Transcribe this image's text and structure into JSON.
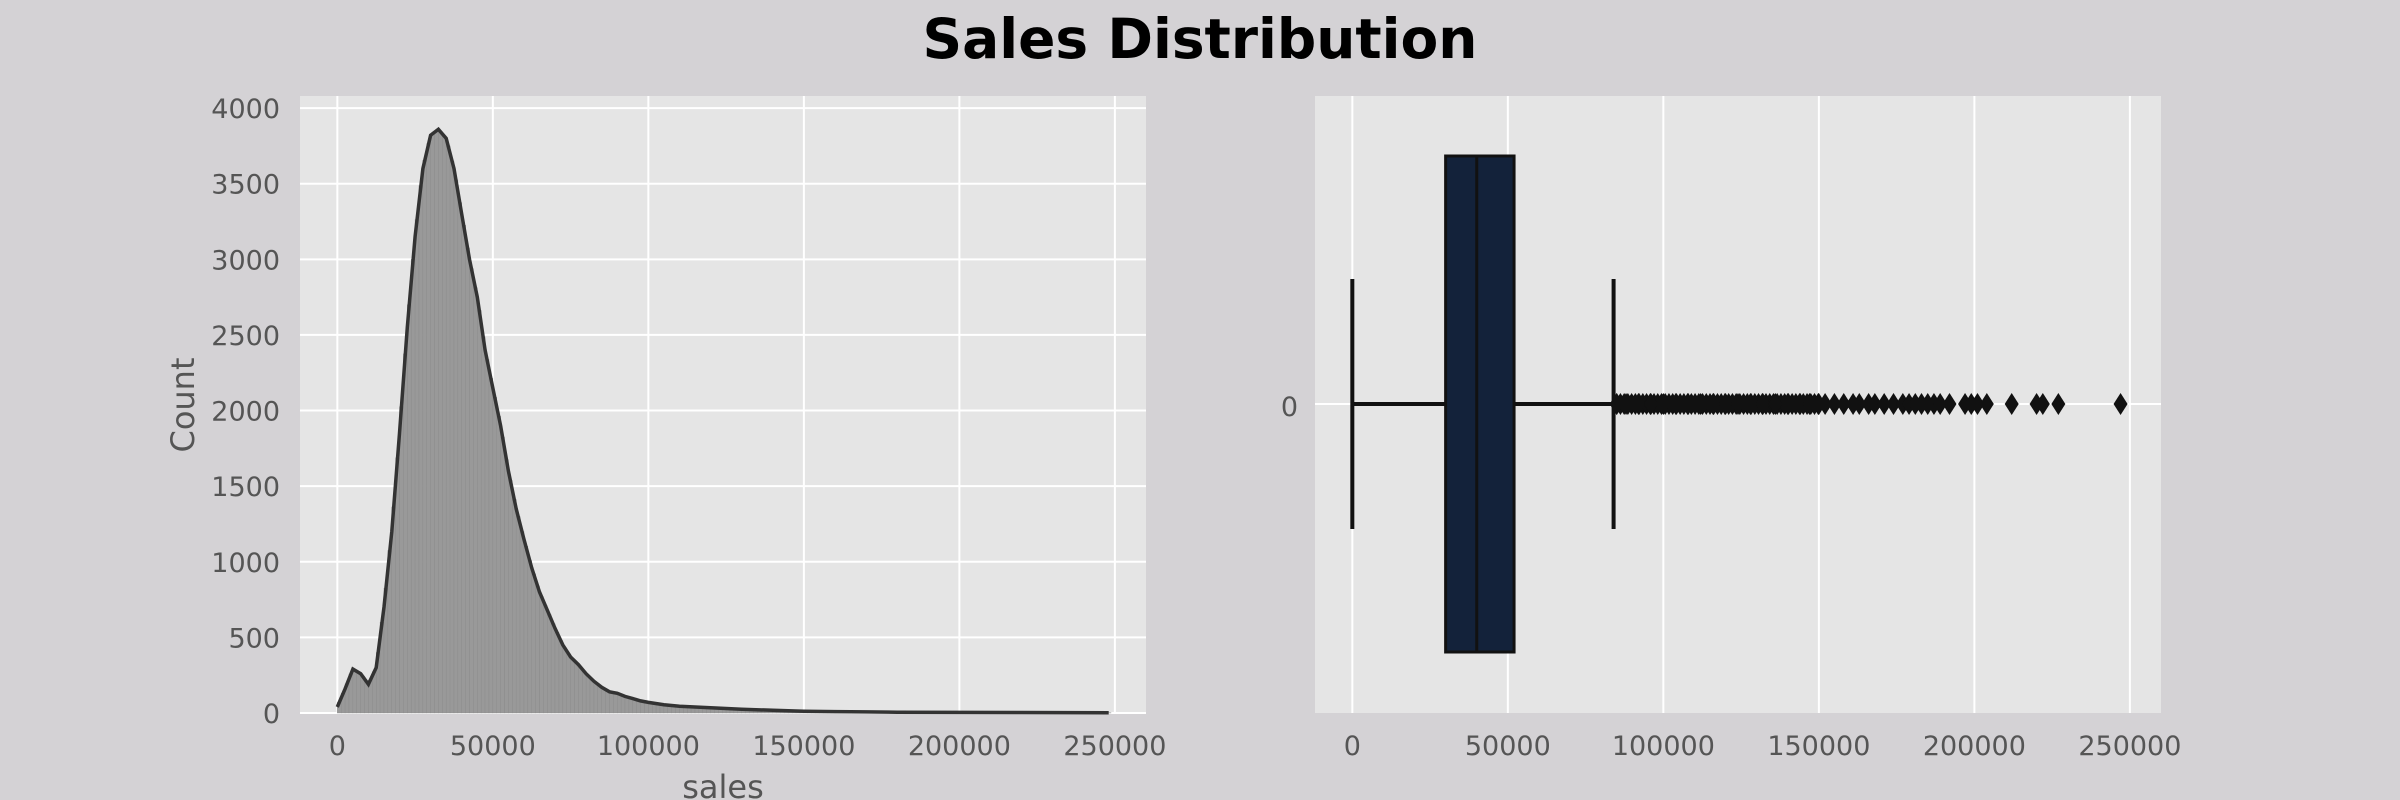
{
  "figure": {
    "title": "Sales Distribution",
    "background": "#d4d2d5",
    "panel_background": "#e5e5e5",
    "grid_color": "#ffffff",
    "text_color": "#555555"
  },
  "chart_data": [
    {
      "type": "histogram",
      "title": "",
      "xlabel": "sales",
      "ylabel": "Count",
      "xlim": [
        -12000,
        260000
      ],
      "ylim": [
        0,
        4080
      ],
      "xticks": [
        "0",
        "50000",
        "100000",
        "150000",
        "200000",
        "250000"
      ],
      "xtick_values": [
        0,
        50000,
        100000,
        150000,
        200000,
        250000
      ],
      "yticks": [
        "0",
        "500",
        "1000",
        "1500",
        "2000",
        "2500",
        "3000",
        "3500",
        "4000"
      ],
      "ytick_values": [
        0,
        500,
        1000,
        1500,
        2000,
        2500,
        3000,
        3500,
        4000
      ],
      "grid": true,
      "bar_color": "#999999",
      "kde_color": "#333333",
      "kde": {
        "x": [
          0,
          2500,
          5000,
          7500,
          10000,
          12500,
          15000,
          17500,
          20000,
          22500,
          25000,
          27500,
          30000,
          32500,
          35000,
          37500,
          40000,
          42500,
          45000,
          47500,
          50000,
          52500,
          55000,
          57500,
          60000,
          62500,
          65000,
          67500,
          70000,
          72500,
          75000,
          77500,
          80000,
          82500,
          85000,
          87500,
          90000,
          92500,
          95000,
          97500,
          100000,
          105000,
          110000,
          115000,
          120000,
          125000,
          130000,
          140000,
          150000,
          160000,
          170000,
          180000,
          200000,
          220000,
          248000
        ],
        "y": [
          40,
          160,
          290,
          260,
          190,
          300,
          700,
          1200,
          1850,
          2550,
          3150,
          3600,
          3820,
          3860,
          3800,
          3600,
          3300,
          3000,
          2750,
          2400,
          2150,
          1900,
          1600,
          1350,
          1150,
          960,
          800,
          680,
          560,
          450,
          370,
          320,
          260,
          210,
          170,
          140,
          130,
          110,
          95,
          80,
          70,
          55,
          45,
          40,
          35,
          30,
          25,
          18,
          12,
          9,
          7,
          5,
          4,
          3,
          2
        ]
      }
    },
    {
      "type": "box",
      "title": "",
      "xlabel": "",
      "ylabel": "",
      "category": "0",
      "xlim": [
        -12000,
        260000
      ],
      "xticks": [
        "0",
        "50000",
        "100000",
        "150000",
        "200000",
        "250000"
      ],
      "xtick_values": [
        0,
        50000,
        100000,
        150000,
        200000,
        250000
      ],
      "grid": true,
      "box_color": "#13223a",
      "whisker_low": 0,
      "q1": 30000,
      "median": 40000,
      "q3": 52000,
      "whisker_high": 84000,
      "outliers": [
        85000,
        88000,
        92000,
        96000,
        100000,
        104000,
        108000,
        112000,
        116000,
        120000,
        124000,
        128000,
        132000,
        136000,
        140000,
        144000,
        147000,
        150000,
        152000,
        155000,
        158000,
        161000,
        163000,
        166000,
        168000,
        171000,
        174000,
        177000,
        179000,
        181000,
        183000,
        185000,
        187000,
        189000,
        192000,
        197000,
        199000,
        201000,
        204000,
        212000,
        220000,
        222000,
        227000,
        247000
      ]
    }
  ]
}
